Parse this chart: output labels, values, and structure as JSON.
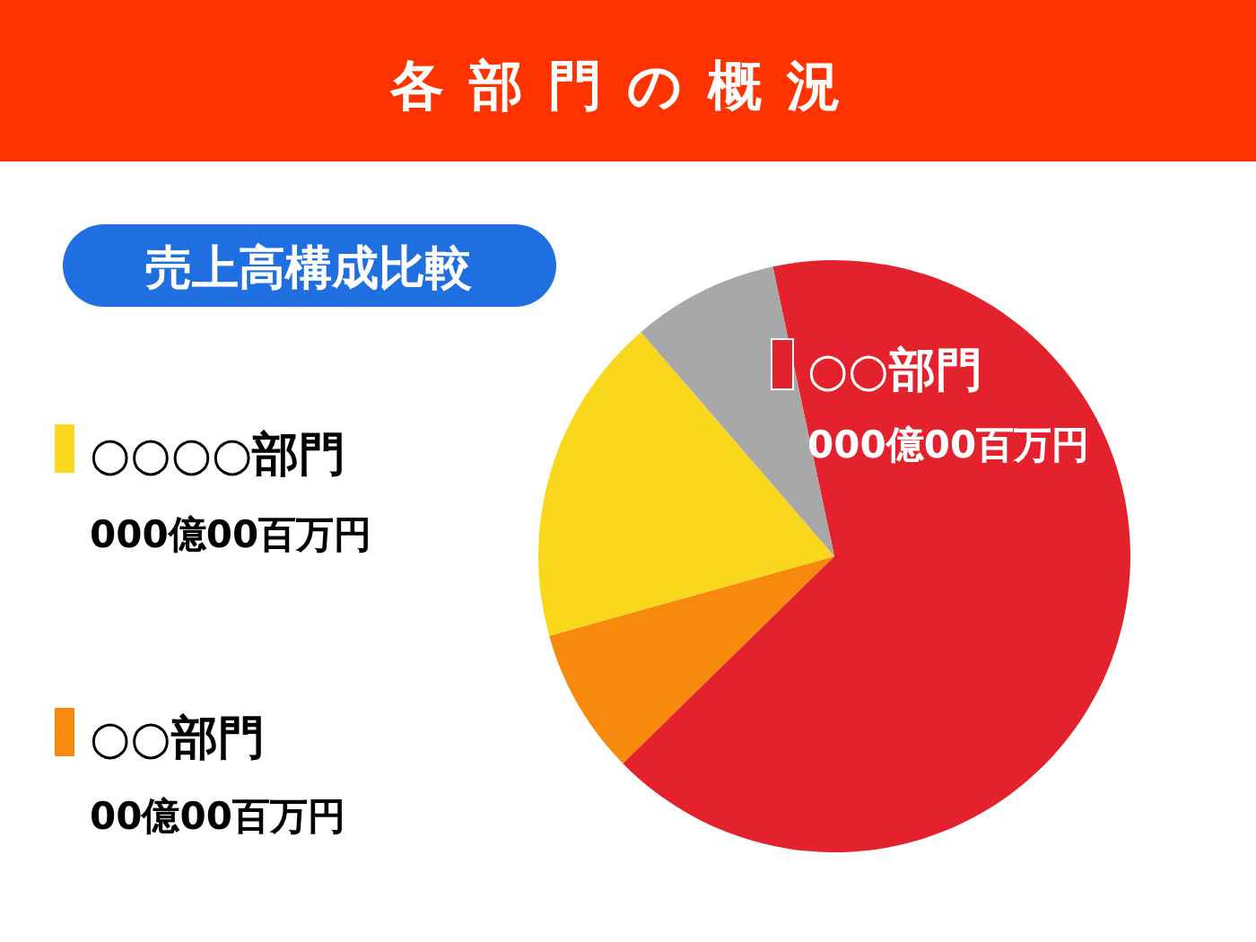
{
  "chart_data": {
    "type": "pie",
    "title": "各部門の概況",
    "subtitle": "売上高構成比較",
    "categories": [
      "○○部門",
      "○○部門",
      "○○○○部門",
      null
    ],
    "values": [
      66,
      8,
      18,
      8
    ],
    "colors": [
      "#e3222e",
      "#f7890c",
      "#f9d71c",
      "#a8a8a8"
    ],
    "annotations": [
      "000億00百万円",
      "00億00百万円",
      "000億00百万円"
    ],
    "legend": "left"
  }
}
